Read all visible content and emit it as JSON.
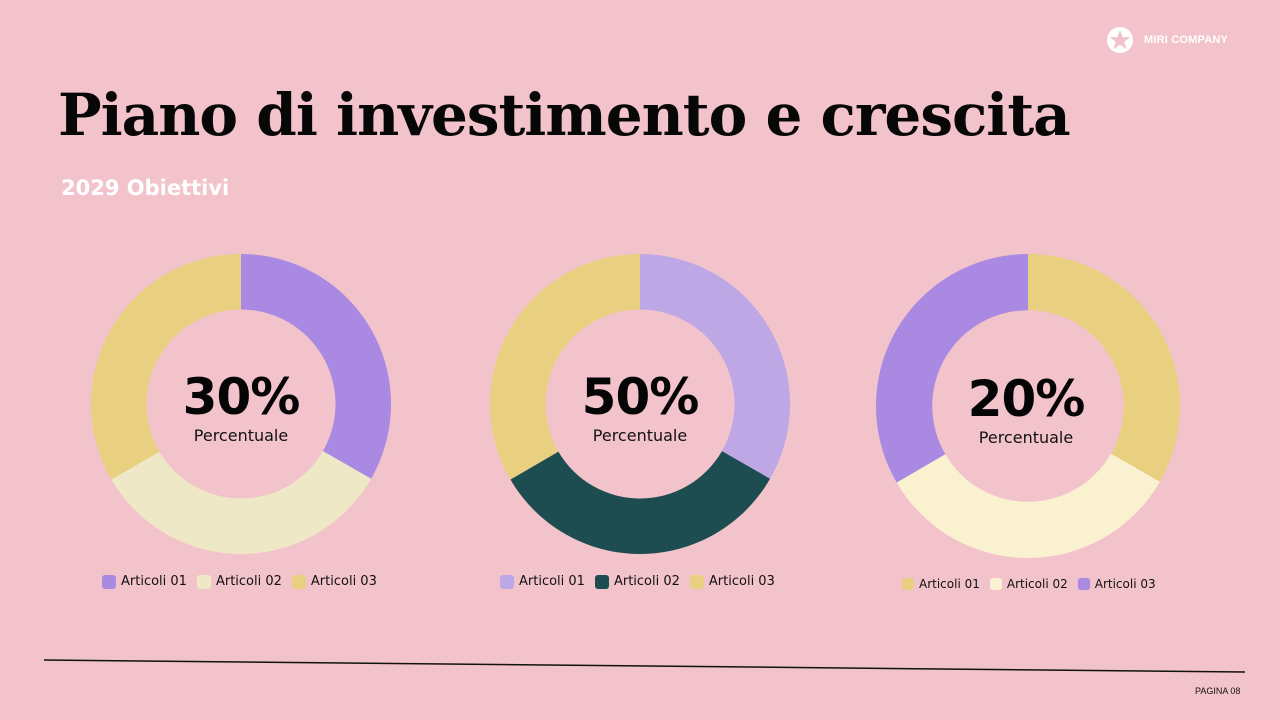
{
  "brand": {
    "name": "MIRI COMPANY",
    "logo_icon": "star-logo-icon"
  },
  "title": "Piano di investimento e crescita",
  "subtitle": "2029 Obiettivi",
  "footer": {
    "page_label": "PAGINA 08"
  },
  "colors": {
    "background": "#f3c3cb",
    "purple": "#a989e1",
    "light_purple": "#bea7e5",
    "yellow": "#e8d080",
    "cream": "#efe8c6",
    "light_cream": "#faf1d0",
    "dark_teal": "#1e4d51"
  },
  "chart_data": [
    {
      "type": "pie",
      "subtype": "donut",
      "center_value": "30%",
      "center_caption": "Percentuale",
      "slices": [
        {
          "label": "Articoli 01",
          "value": 33.3,
          "color": "#a989e1"
        },
        {
          "label": "Articoli 02",
          "value": 33.3,
          "color": "#efe8c6"
        },
        {
          "label": "Articoli 03",
          "value": 33.4,
          "color": "#e8d080"
        }
      ],
      "start_angle_deg": 0,
      "legend_position": "bottom"
    },
    {
      "type": "pie",
      "subtype": "donut",
      "center_value": "50%",
      "center_caption": "Percentuale",
      "slices": [
        {
          "label": "Articoli 01",
          "value": 33.3,
          "color": "#bea7e5"
        },
        {
          "label": "Articoli 02",
          "value": 33.3,
          "color": "#1e4d51"
        },
        {
          "label": "Articoli 03",
          "value": 33.4,
          "color": "#e8d080"
        }
      ],
      "start_angle_deg": 0,
      "legend_position": "bottom"
    },
    {
      "type": "pie",
      "subtype": "donut",
      "center_value": "20%",
      "center_caption": "Percentuale",
      "slices": [
        {
          "label": "Articoli 01",
          "value": 33.3,
          "color": "#e8d080"
        },
        {
          "label": "Articoli 02",
          "value": 33.3,
          "color": "#faf1d0"
        },
        {
          "label": "Articoli 03",
          "value": 33.4,
          "color": "#a989e1"
        }
      ],
      "start_angle_deg": 0,
      "legend_position": "bottom"
    }
  ]
}
